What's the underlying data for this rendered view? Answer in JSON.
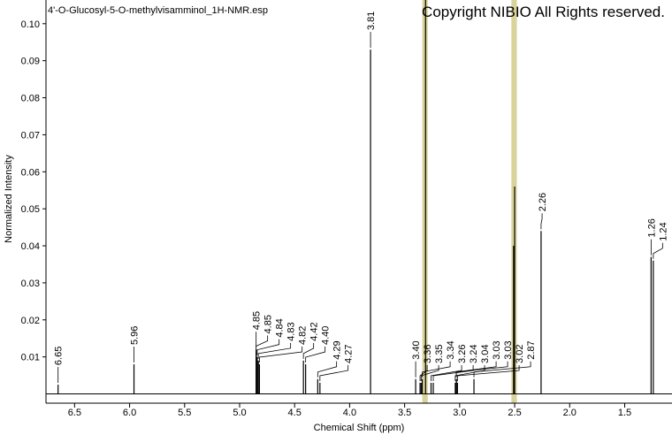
{
  "chart_data": {
    "type": "stem",
    "title": "4'-O-Glucosyl-5-O-methylvisamminol_1H-NMR.esp",
    "subtitle": "Copyright NIBIO All Rights reserved.",
    "x_label": "Chemical Shift (ppm)",
    "y_label": "Normalized Intensity",
    "xlim": [
      6.76,
      1.07
    ],
    "ylim": [
      -0.0025,
      0.1064
    ],
    "xticks": [
      6.5,
      {
        "value": 6,
        "label": "6.0"
      },
      5.5,
      {
        "value": 5,
        "label": "5.0"
      },
      4.5,
      {
        "value": 4,
        "label": "4.0"
      },
      3.5,
      {
        "value": 3,
        "label": "3.0"
      },
      2.5,
      {
        "value": 2,
        "label": "2.0"
      },
      1.5
    ],
    "yticks": [
      0.01,
      0.02,
      0.03,
      0.04,
      0.05,
      0.06,
      0.07,
      0.08,
      0.09,
      {
        "value": 0.1,
        "label": "0.10"
      }
    ],
    "color": "#000000",
    "band_color": "#d9d49c",
    "solvent_bands": [
      [
        3.34,
        3.29
      ],
      [
        2.53,
        2.48
      ]
    ],
    "peaks": {
      "x": [
        6.65,
        5.96,
        4.85,
        4.85,
        4.84,
        4.83,
        4.82,
        4.42,
        4.4,
        4.29,
        4.27,
        3.81,
        3.4,
        3.36,
        3.35,
        3.34,
        3.26,
        3.24,
        3.04,
        3.03,
        3.03,
        3.02,
        2.87,
        2.26,
        1.26,
        1.24,
        3.31,
        2.5,
        2.51
      ],
      "values": [
        0.0025,
        0.008,
        0.012,
        0.011,
        0.01,
        0.009,
        0.008,
        0.009,
        0.008,
        0.004,
        0.003,
        0.093,
        0.004,
        0.003,
        0.003,
        0.004,
        0.003,
        0.003,
        0.003,
        0.004,
        0.004,
        0.003,
        0.004,
        0.044,
        0.037,
        0.036,
        0.107,
        0.056,
        0.04
      ],
      "labels": [
        "6.65",
        "5.96",
        "4.85",
        "4.85",
        "4.84",
        "4.83",
        "4.82",
        "4.42",
        "4.40",
        "4.29",
        "4.27",
        "3.81",
        "3.40",
        "3.36",
        "3.35",
        "3.34",
        "3.26",
        "3.24",
        "3.04",
        "3.03",
        "3.03",
        "3.02",
        "2.87",
        "2.26",
        "1.26",
        "1.24",
        null,
        null,
        null
      ]
    }
  }
}
